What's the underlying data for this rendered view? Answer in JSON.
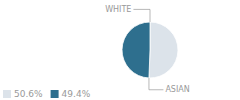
{
  "chart_data": {
    "type": "pie",
    "categories": [
      "WHITE",
      "ASIAN"
    ],
    "values": [
      50.6,
      49.4
    ],
    "value_labels": [
      "50.6%",
      "49.4%"
    ],
    "colors": [
      "#dce3ea",
      "#2e6f8e"
    ],
    "legend": "lower left"
  }
}
